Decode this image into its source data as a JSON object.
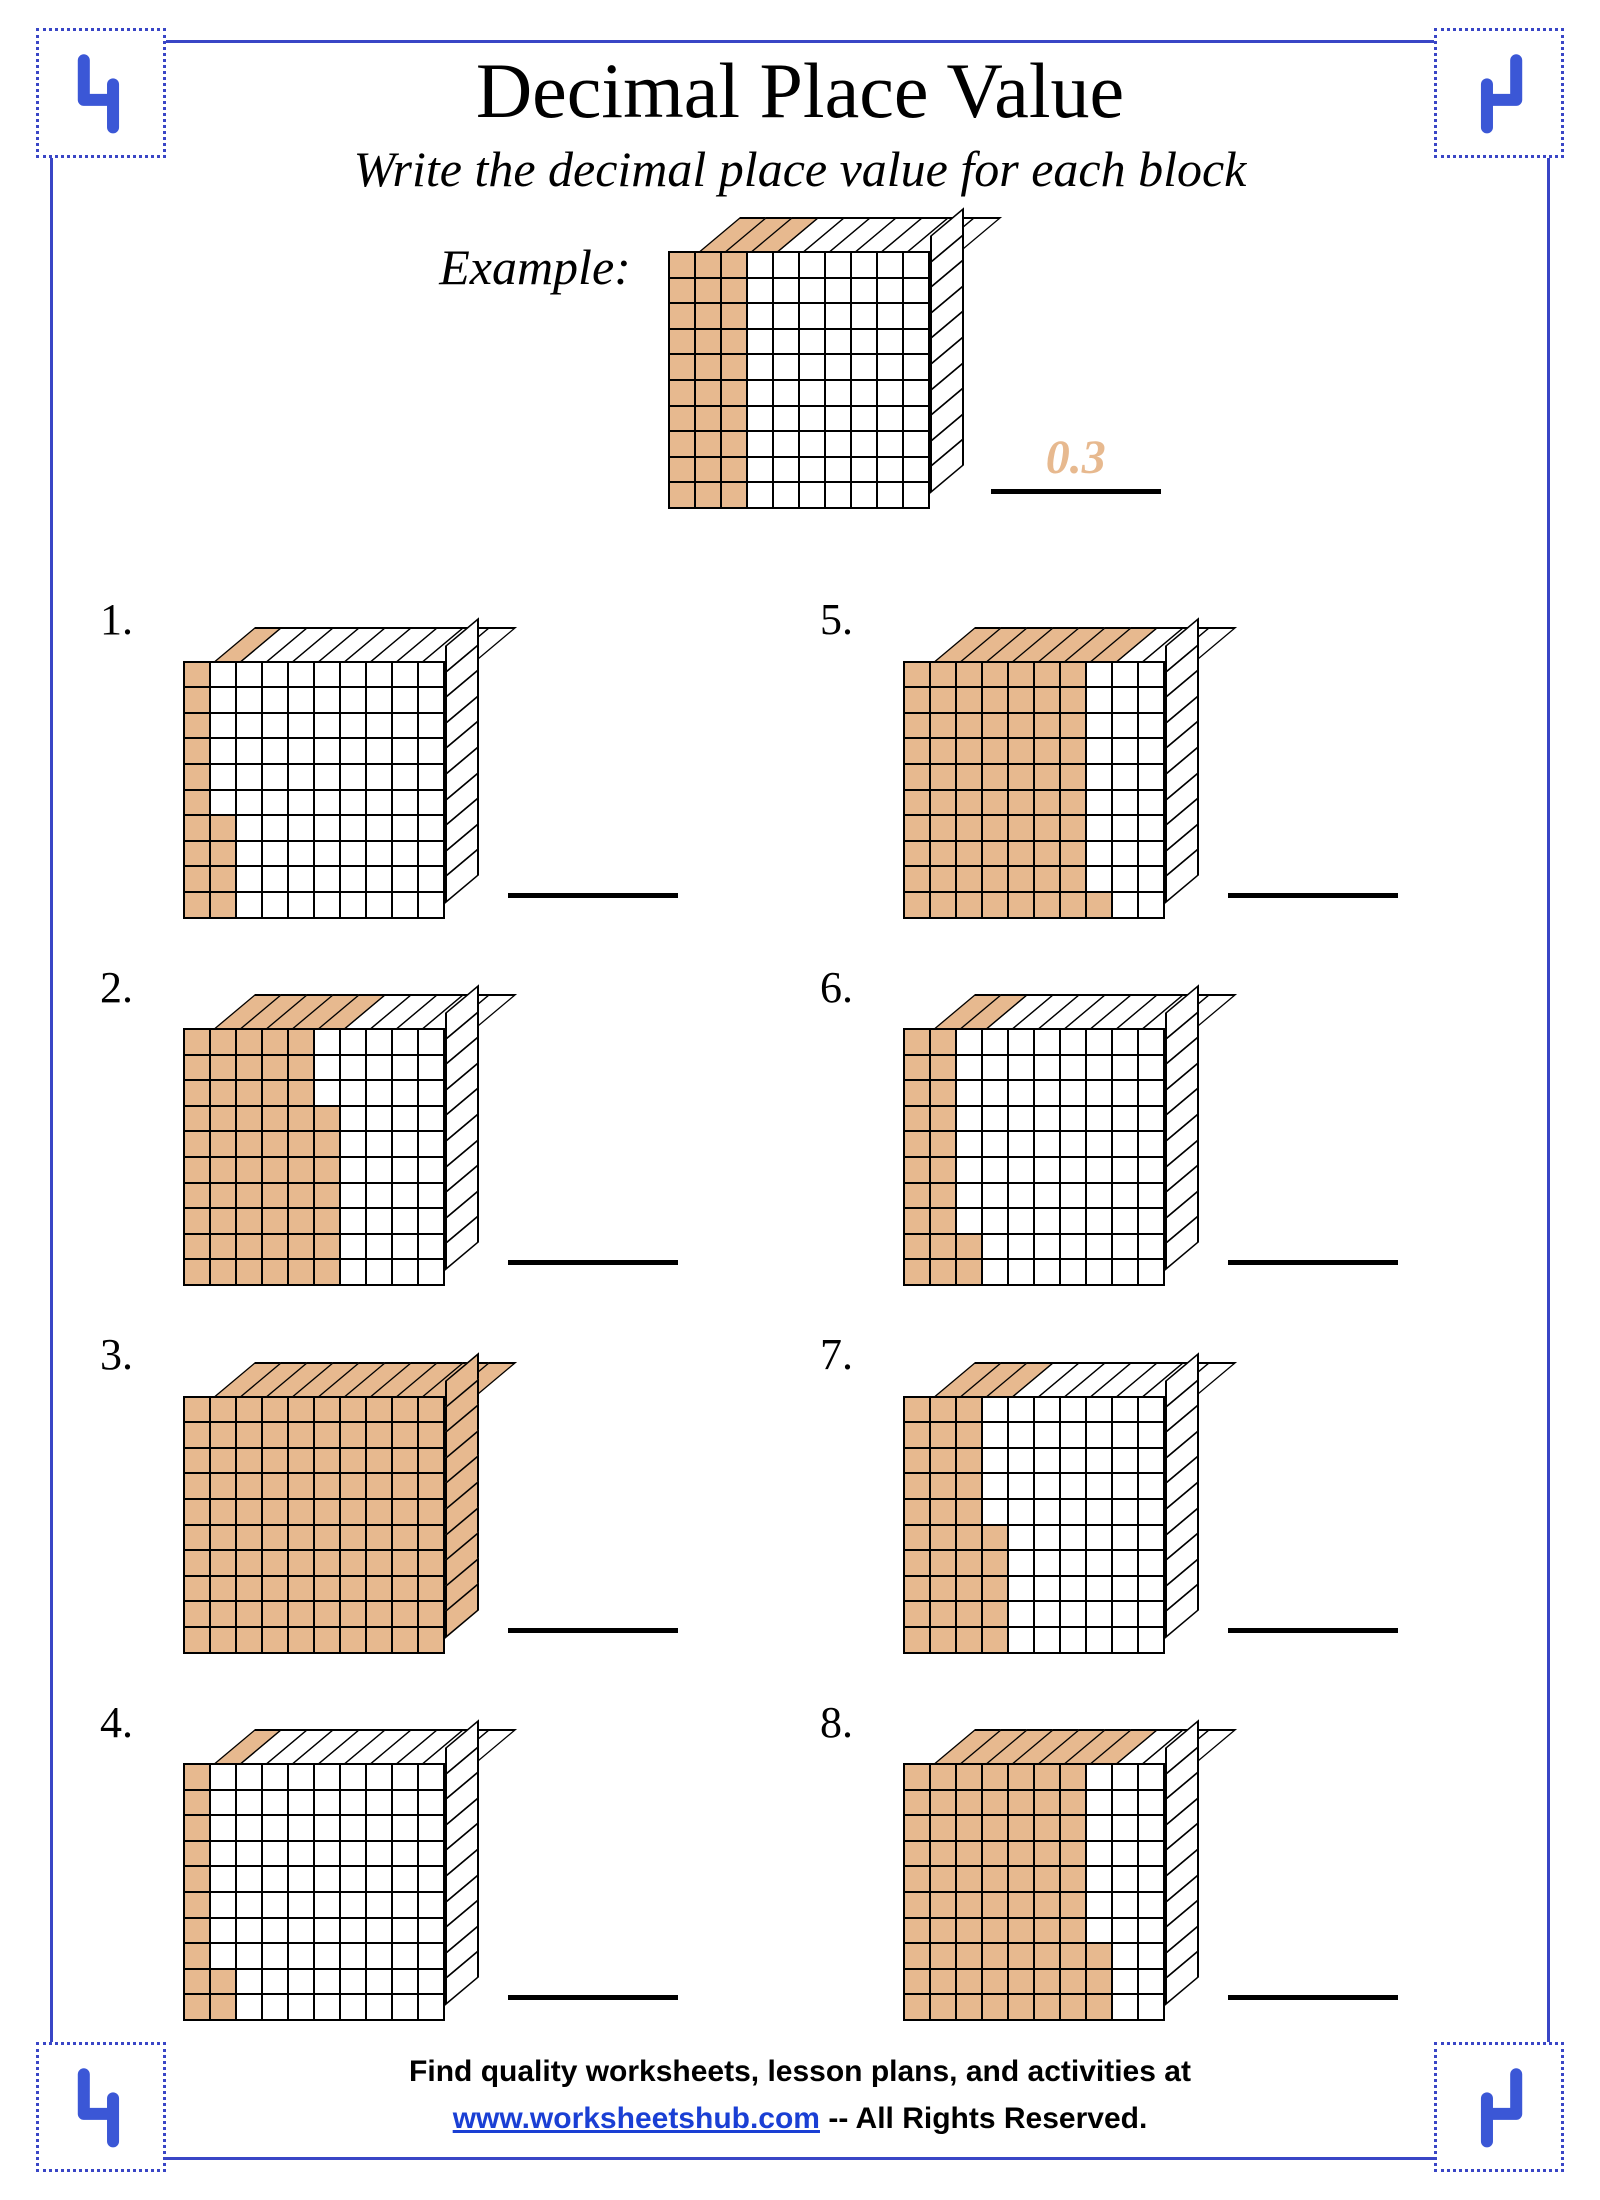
{
  "colors": {
    "frame": "#3946c6",
    "corner_dots": "#3946c6",
    "corner_glyph": "#3b57d6",
    "fill": "#e7b98f",
    "answer": "#e7b98f",
    "link": "#1a3fd4",
    "text": "#000000"
  },
  "fonts": {
    "title_size": 78,
    "subtitle_size": 50,
    "problem_num_size": 44,
    "footer_size": 30
  },
  "header": {
    "title": "Decimal Place Value",
    "subtitle": "Write the decimal place value for each block"
  },
  "example": {
    "label": "Example:",
    "filledColumns": 3,
    "extraCells": 0,
    "answer": "0.3"
  },
  "problems": [
    {
      "n": "1.",
      "filledColumns": 1,
      "extraCells": 4
    },
    {
      "n": "2.",
      "filledColumns": 5,
      "extraCells": 7
    },
    {
      "n": "3.",
      "filledColumns": 10,
      "extraCells": 0
    },
    {
      "n": "4.",
      "filledColumns": 1,
      "extraCells": 2
    },
    {
      "n": "5.",
      "filledColumns": 7,
      "extraCells": 1
    },
    {
      "n": "6.",
      "filledColumns": 2,
      "extraCells": 2
    },
    {
      "n": "7.",
      "filledColumns": 3,
      "extraCells": 5
    },
    {
      "n": "8.",
      "filledColumns": 7,
      "extraCells": 3
    }
  ],
  "footer": {
    "line1": "Find quality worksheets, lesson plans, and activities at",
    "link_text": "www.worksheetshub.com",
    "tail": "  -- All Rights Reserved."
  },
  "grid": {
    "rows": 10,
    "cols": 10
  }
}
